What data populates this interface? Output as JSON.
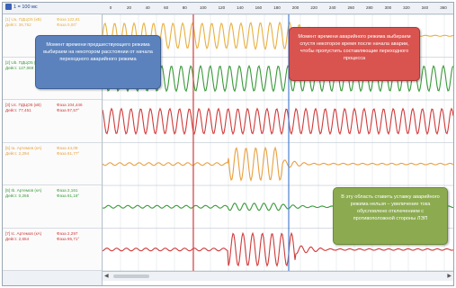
{
  "toolbar": {
    "zoom_label": "1 = 100 мс"
  },
  "ruler": {
    "ticks": [
      "0",
      "20",
      "40",
      "60",
      "80",
      "100",
      "120",
      "140",
      "160",
      "180",
      "200",
      "220",
      "240",
      "260",
      "280",
      "300",
      "320",
      "340",
      "360"
    ]
  },
  "channels": [
    {
      "name": "[1] Ua. ПДЦО5 (кВ)",
      "eff": "Дейст. 36,752",
      "ph1": "Фаза 122,81",
      "ph2": "Фаза 0,00°",
      "color": "#e8b040"
    },
    {
      "name": "[2] Ub. ПДЦО5 (кВ)",
      "eff": "Дейст. 127,069",
      "ph1": "Фаза 6,24°",
      "ph2": "",
      "color": "#3a9a3a"
    },
    {
      "name": "[3] Uc. ПДЦО5 (кВ)",
      "eff": "Дейст. 77,451",
      "ph1": "Фаза 104,446",
      "ph2": "Фаза 97,57°",
      "color": "#d03a3a"
    },
    {
      "name": "[5] Ia. Артемов (кА)",
      "eff": "Дейст. 2,294",
      "ph1": "Фаза 44,09",
      "ph2": "Фаза 61,77°",
      "color": "#e8a040"
    },
    {
      "name": "[6] Ib. Артемов (кА)",
      "eff": "Дейст. 0,255",
      "ph1": "Фаза 2,161",
      "ph2": "Фаза 91,18°",
      "color": "#3a9a3a"
    },
    {
      "name": "[7] Ic. Артемов (кА)",
      "eff": "Дейст. 2,654",
      "ph1": "Фаза 2,297",
      "ph2": "Фаза 95,71°",
      "color": "#d03a3a"
    }
  ],
  "callouts": {
    "left": "Момент времени предшествующего режима выбираем на некотором расстоянии от начала переходного аварийного режима",
    "right": "Момент времени аварийного режима выбираем спустя некоторое время после начала аварии, чтобы пропустить составляющие переходного процесса",
    "green": "В эту область ставить уставку аварийного режима нельзя – увеличение тока обусловлено отключением с противоположной стороны ЛЭП"
  },
  "colors": {
    "cursor_red": "#e04040",
    "cursor_blue": "#4a7fd0",
    "grid": "#dfe4ea"
  }
}
